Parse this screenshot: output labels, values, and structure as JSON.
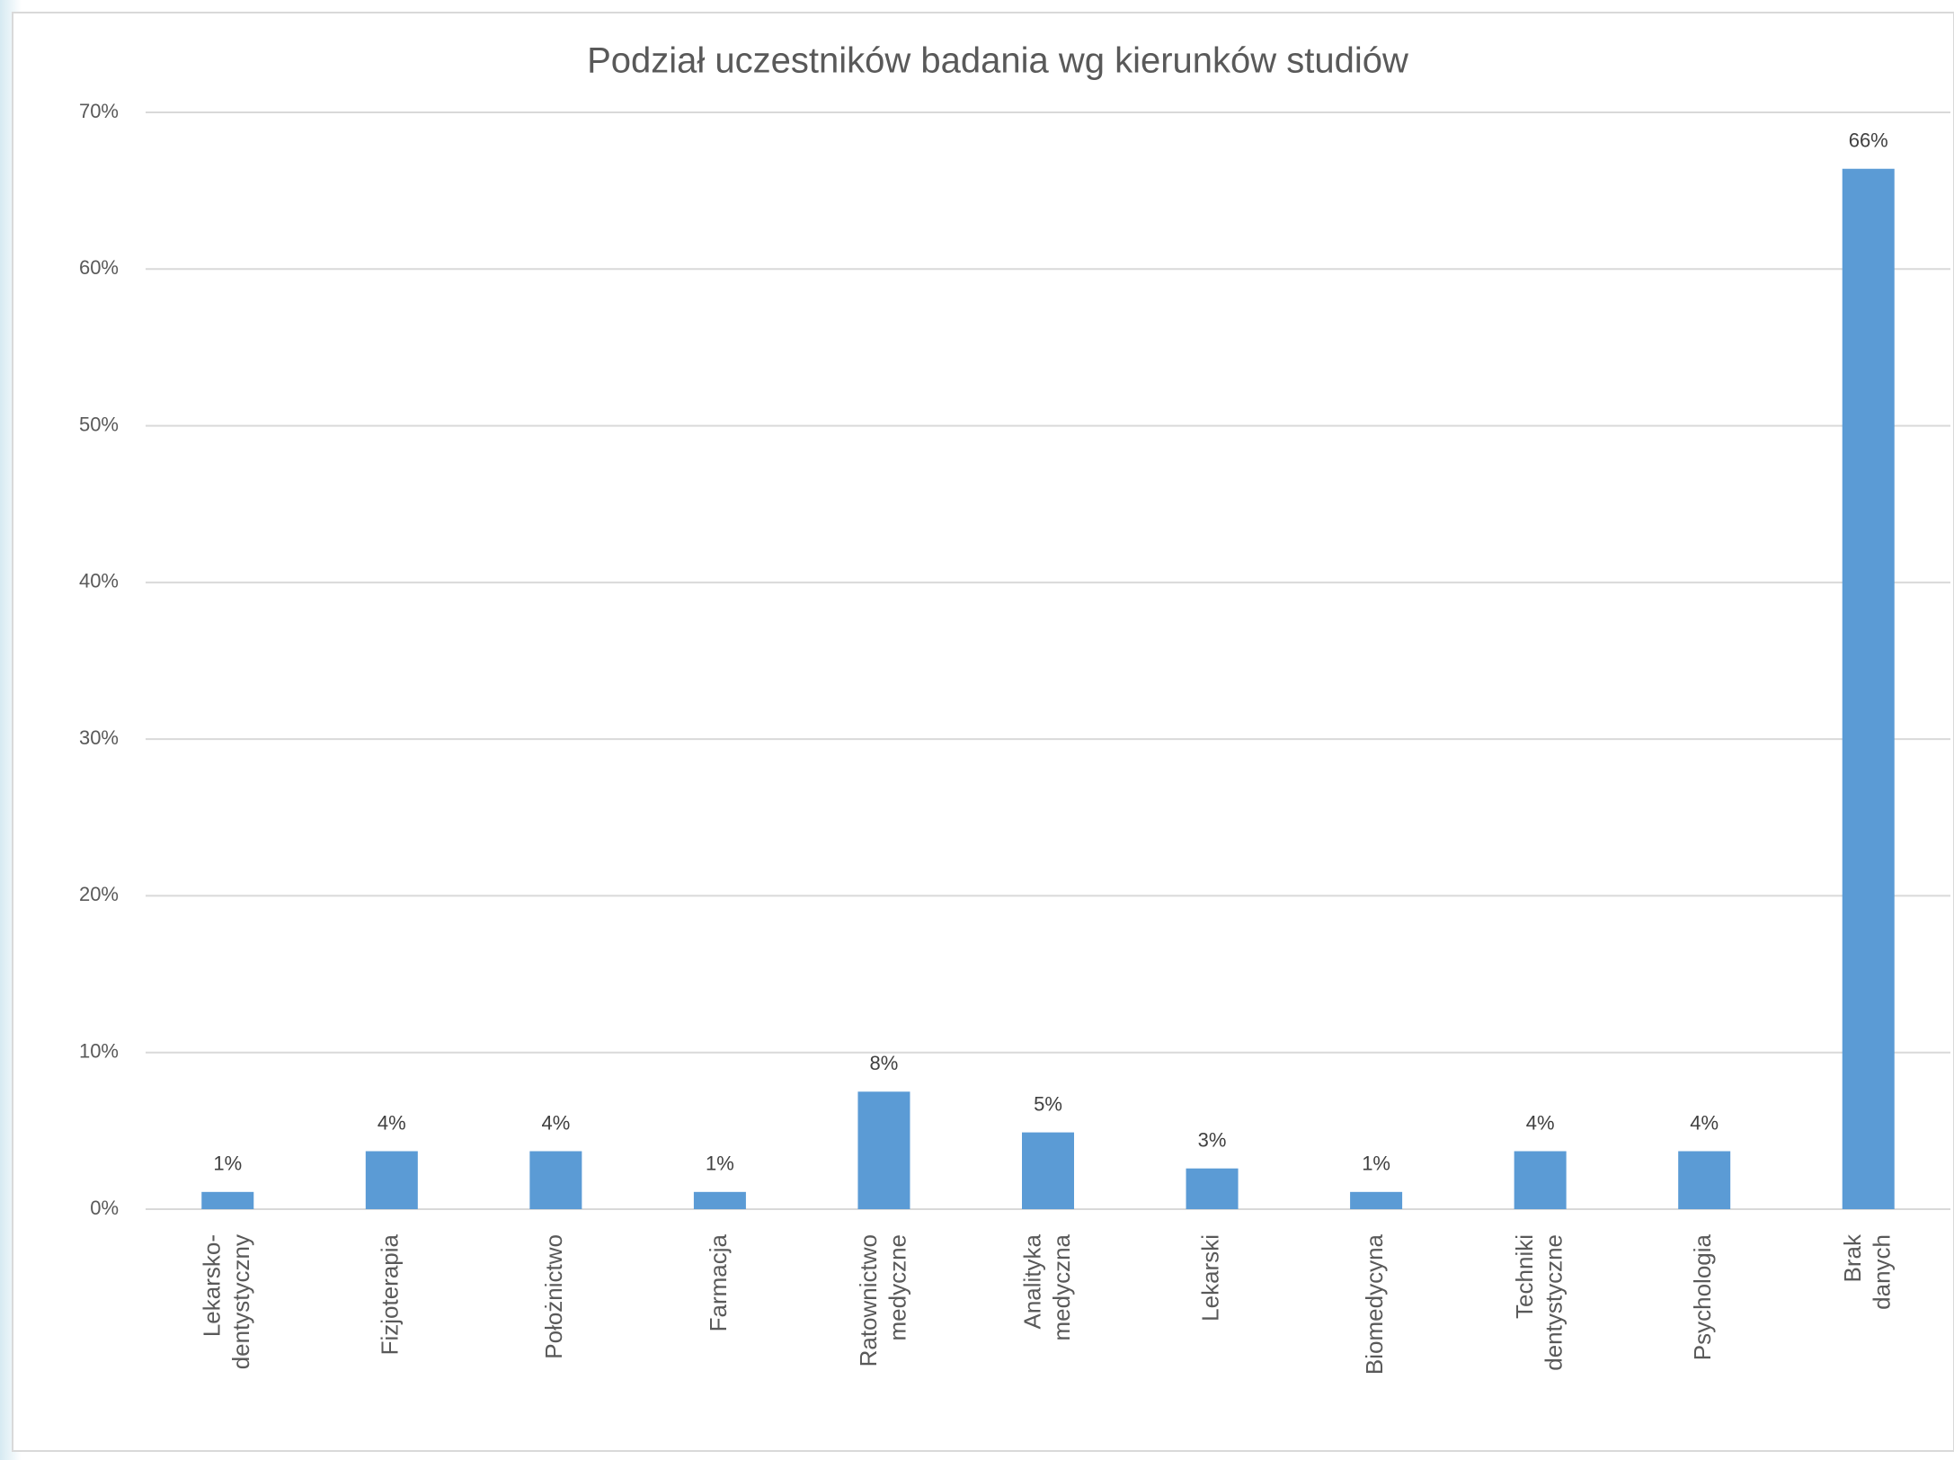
{
  "chart_data": {
    "type": "bar",
    "title": "Podział uczestników badania wg kierunków studiów",
    "categories": [
      "Lekarsko-dentystyczny",
      "Fizjoterapia",
      "Położnictwo",
      "Farmacja",
      "Ratownictwo medyczne",
      "Analityka medyczna",
      "Lekarski",
      "Biomedycyna",
      "Techniki dentystyczne",
      "Psychologia",
      "Brak danych"
    ],
    "values": [
      1.1,
      3.7,
      3.7,
      1.1,
      7.5,
      4.9,
      2.6,
      1.1,
      3.7,
      3.7,
      66.4
    ],
    "value_labels": [
      "1%",
      "4%",
      "4%",
      "1%",
      "8%",
      "5%",
      "3%",
      "1%",
      "4%",
      "4%",
      "66%"
    ],
    "color": "#5b9bd5",
    "ylim": [
      0,
      70
    ],
    "yticks": [
      {
        "value": 0,
        "label": "0%"
      },
      {
        "value": 10,
        "label": "10%"
      },
      {
        "value": 20,
        "label": "20%"
      },
      {
        "value": 30,
        "label": "30%"
      },
      {
        "value": 40,
        "label": "40%"
      },
      {
        "value": 50,
        "label": "50%"
      },
      {
        "value": 60,
        "label": "60%"
      },
      {
        "value": 70,
        "label": "70%"
      }
    ],
    "grid": true
  }
}
